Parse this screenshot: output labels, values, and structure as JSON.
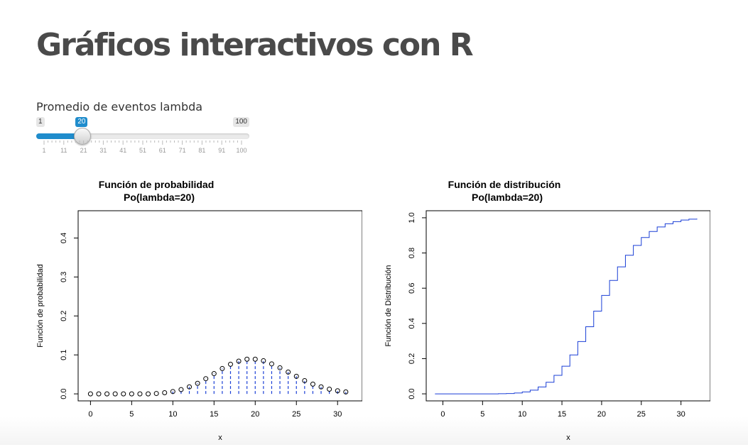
{
  "page": {
    "title": "Gráficos interactivos con R"
  },
  "slider": {
    "label": "Promedio de eventos lambda",
    "min": 1,
    "max": 100,
    "value": 20,
    "min_label": "1",
    "max_label": "100",
    "value_label": "20",
    "tick_labels": [
      "1",
      "11",
      "21",
      "31",
      "41",
      "51",
      "61",
      "71",
      "81",
      "91",
      "100"
    ],
    "accent": "#1f8ccc"
  },
  "chart_data": [
    {
      "type": "scatter",
      "title": "Función de probabilidad",
      "subtitle": "Po(lambda=20)",
      "xlabel": "x",
      "ylabel": "Función de probabilidad",
      "xlim": [
        -1.5,
        33
      ],
      "ylim": [
        -0.018,
        0.47
      ],
      "xticks": [
        "0",
        "5",
        "10",
        "15",
        "20",
        "25",
        "30"
      ],
      "yticks": [
        "0.0",
        "0.1",
        "0.2",
        "0.3",
        "0.4"
      ],
      "x": [
        0,
        1,
        2,
        3,
        4,
        5,
        6,
        7,
        8,
        9,
        10,
        11,
        12,
        13,
        14,
        15,
        16,
        17,
        18,
        19,
        20,
        21,
        22,
        23,
        24,
        25,
        26,
        27,
        28,
        29,
        30,
        31
      ],
      "values": [
        0.0,
        0.0,
        0.0,
        0.0,
        0.0,
        0.0,
        0.0,
        0.0,
        0.001,
        0.003,
        0.006,
        0.011,
        0.018,
        0.027,
        0.039,
        0.052,
        0.065,
        0.076,
        0.084,
        0.089,
        0.089,
        0.085,
        0.077,
        0.067,
        0.056,
        0.045,
        0.034,
        0.025,
        0.018,
        0.012,
        0.008,
        0.005
      ],
      "point_color": "#000000",
      "line_color": "#1a3fd6",
      "line_style": "dashed"
    },
    {
      "type": "line",
      "title": "Función de distribución",
      "subtitle": "Po(lambda=20)",
      "xlabel": "x",
      "ylabel": "Función de Distribución",
      "xlim": [
        -2.1,
        33.7
      ],
      "ylim": [
        -0.04,
        1.04
      ],
      "xticks": [
        "0",
        "5",
        "10",
        "15",
        "20",
        "25",
        "30"
      ],
      "yticks": [
        "0.0",
        "0.2",
        "0.4",
        "0.6",
        "0.8",
        "1.0"
      ],
      "step": true,
      "x": [
        -1,
        0,
        1,
        2,
        3,
        4,
        5,
        6,
        7,
        8,
        9,
        10,
        11,
        12,
        13,
        14,
        15,
        16,
        17,
        18,
        19,
        20,
        21,
        22,
        23,
        24,
        25,
        26,
        27,
        28,
        29,
        30,
        31,
        32
      ],
      "values": [
        0,
        0,
        0,
        0,
        0,
        0,
        0,
        0,
        0.001,
        0.002,
        0.005,
        0.011,
        0.021,
        0.039,
        0.066,
        0.105,
        0.157,
        0.221,
        0.297,
        0.381,
        0.47,
        0.559,
        0.644,
        0.721,
        0.787,
        0.843,
        0.888,
        0.922,
        0.948,
        0.966,
        0.978,
        0.987,
        0.992,
        0.995
      ],
      "line_color": "#1a3fd6"
    }
  ]
}
